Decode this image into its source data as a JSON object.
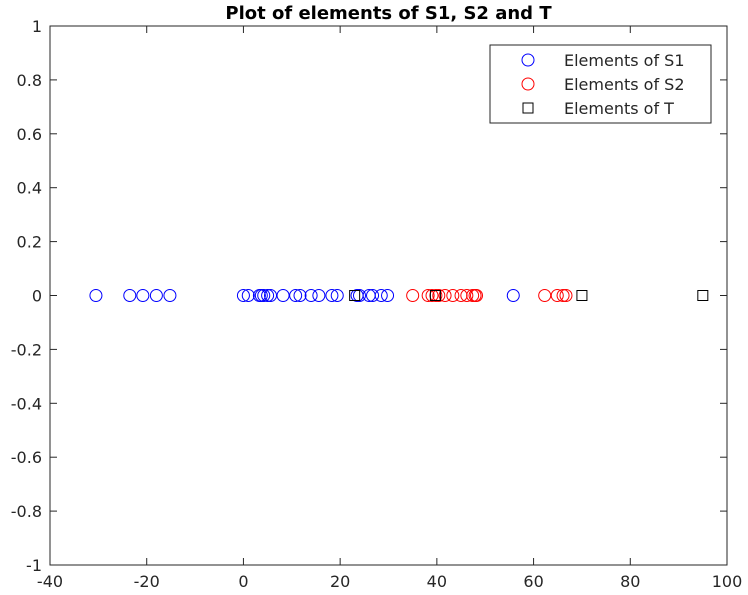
{
  "chart_data": {
    "type": "scatter",
    "title": "Plot of elements of S1, S2 and T",
    "xlabel": "",
    "ylabel": "",
    "xlim": [
      -40,
      100
    ],
    "ylim": [
      -1,
      1
    ],
    "xticks": [
      -40,
      -20,
      0,
      20,
      40,
      60,
      80,
      100
    ],
    "yticks": [
      -1,
      -0.8,
      -0.6,
      -0.4,
      -0.2,
      0,
      0.2,
      0.4,
      0.6,
      0.8,
      1
    ],
    "grid": false,
    "legend_position": "top-right",
    "series": [
      {
        "name": "Elements of S1",
        "marker": "circle",
        "color": "#0000ff",
        "x": [
          -30.5,
          -23.5,
          -20.8,
          -18.0,
          -15.2,
          0.0,
          1.0,
          3.3,
          3.7,
          4.2,
          5.0,
          5.6,
          8.2,
          10.8,
          11.7,
          14.0,
          15.6,
          18.3,
          19.4,
          23.5,
          24.0,
          26.0,
          26.7,
          28.5,
          29.8,
          55.8
        ],
        "y": [
          0,
          0,
          0,
          0,
          0,
          0,
          0,
          0,
          0,
          0,
          0,
          0,
          0,
          0,
          0,
          0,
          0,
          0,
          0,
          0,
          0,
          0,
          0,
          0,
          0,
          0
        ]
      },
      {
        "name": "Elements of S2",
        "marker": "circle",
        "color": "#ff0000",
        "x": [
          35.0,
          38.2,
          39.0,
          39.8,
          40.4,
          41.7,
          43.3,
          45.0,
          46.2,
          47.4,
          47.9,
          48.2,
          62.3,
          64.9,
          66.1,
          66.7
        ],
        "y": [
          0,
          0,
          0,
          0,
          0,
          0,
          0,
          0,
          0,
          0,
          0,
          0,
          0,
          0,
          0,
          0
        ]
      },
      {
        "name": "Elements of T",
        "marker": "square",
        "color": "#000000",
        "x": [
          23.0,
          39.7,
          70.0,
          95.0
        ],
        "y": [
          0,
          0,
          0,
          0
        ]
      }
    ]
  }
}
